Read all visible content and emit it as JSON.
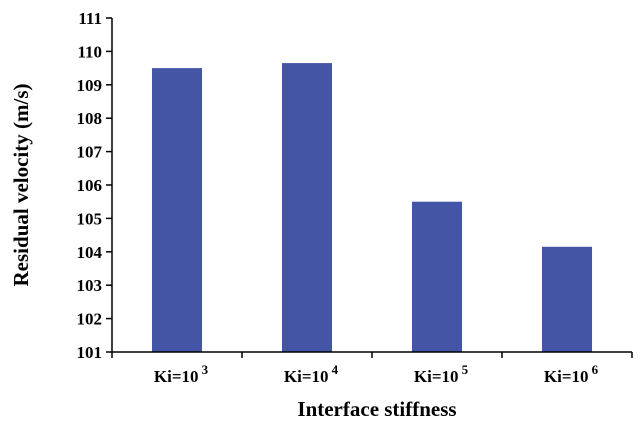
{
  "chart_data": {
    "type": "bar",
    "title": "",
    "categories": [
      {
        "base": "Ki=10",
        "exp": "3"
      },
      {
        "base": "Ki=10",
        "exp": "4"
      },
      {
        "base": "Ki=10",
        "exp": "5"
      },
      {
        "base": "Ki=10",
        "exp": "6"
      }
    ],
    "values": [
      109.5,
      109.65,
      105.5,
      104.15
    ],
    "xlabel": "Interface stiffness",
    "ylabel": "Residual velocity (m/s)",
    "ylim": [
      101,
      111
    ],
    "yticks": [
      "101",
      "102",
      "103",
      "104",
      "105",
      "106",
      "107",
      "108",
      "109",
      "110",
      "111"
    ],
    "grid": false,
    "legend": "none",
    "bar_color": "#4455a6",
    "axis_color": "#000000"
  }
}
